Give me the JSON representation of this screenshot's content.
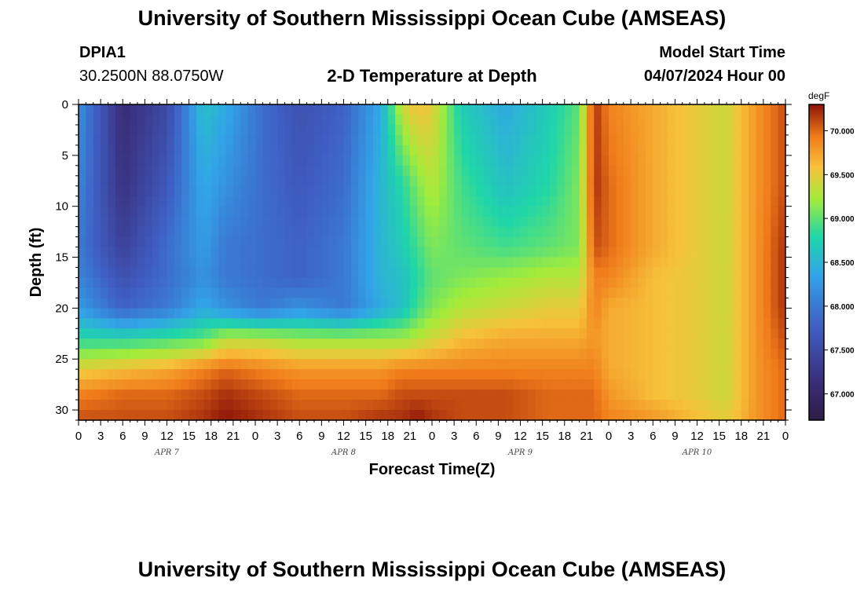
{
  "header": {
    "title": "University of Southern Mississippi Ocean Cube (AMSEAS)",
    "station_id": "DPIA1",
    "coords": "30.2500N  88.0750W",
    "plot_title": "2-D Temperature at Depth",
    "model_start_label": "Model Start Time",
    "model_start_value": "04/07/2024 Hour 00"
  },
  "footer": {
    "title": "University of Southern Mississippi Ocean Cube (AMSEAS)"
  },
  "chart_data": {
    "type": "heatmap",
    "title": "2-D Temperature at Depth",
    "xlabel": "Forecast Time(Z)",
    "ylabel": "Depth (ft)",
    "x_tick_labels": [
      "0",
      "3",
      "6",
      "9",
      "12",
      "15",
      "18",
      "21",
      "0",
      "3",
      "6",
      "9",
      "12",
      "15",
      "18",
      "21",
      "0",
      "3",
      "6",
      "9",
      "12",
      "15",
      "18",
      "21",
      "0",
      "3",
      "6",
      "9",
      "12",
      "15",
      "18",
      "21",
      "0"
    ],
    "day_labels": [
      "APR 7",
      "APR 8",
      "APR 9",
      "APR 10"
    ],
    "y_ticks": [
      0,
      5,
      10,
      15,
      20,
      25,
      30
    ],
    "ylim": [
      0,
      31
    ],
    "xlim_hours": [
      0,
      96
    ],
    "colorbar": {
      "unit": "degF",
      "min": 66.7,
      "max": 70.3,
      "ticks": [
        "67.000",
        "67.500",
        "68.000",
        "68.500",
        "69.000",
        "69.500",
        "70.000"
      ]
    },
    "value_profiles": {
      "depths_ft": [
        0,
        8,
        14,
        17,
        20,
        23,
        26,
        28.5,
        31
      ],
      "hours": [
        0,
        6,
        12,
        17,
        20,
        25,
        30,
        36,
        41,
        44,
        46,
        48,
        52,
        58,
        64,
        68,
        70,
        72,
        78,
        84,
        88,
        92,
        96
      ],
      "temps_degF": [
        [
          68.2,
          68.1,
          68.0,
          68.1,
          68.3,
          68.8,
          69.5,
          69.9,
          70.1
        ],
        [
          67.1,
          67.2,
          67.4,
          67.6,
          67.8,
          68.8,
          69.6,
          70.0,
          70.1
        ],
        [
          67.5,
          67.7,
          67.9,
          67.9,
          68.0,
          68.9,
          69.7,
          70.0,
          70.1
        ],
        [
          68.6,
          68.4,
          68.3,
          68.2,
          68.4,
          69.0,
          69.9,
          70.1,
          70.2
        ],
        [
          68.4,
          68.2,
          68.0,
          68.0,
          68.2,
          69.3,
          70.0,
          70.2,
          70.3
        ],
        [
          67.9,
          67.9,
          67.9,
          67.9,
          68.0,
          69.3,
          69.9,
          70.1,
          70.2
        ],
        [
          67.6,
          67.7,
          67.8,
          67.8,
          68.2,
          69.2,
          69.8,
          70.0,
          70.1
        ],
        [
          67.8,
          67.9,
          68.0,
          68.0,
          68.0,
          69.2,
          69.8,
          70.0,
          70.1
        ],
        [
          68.4,
          68.5,
          68.5,
          68.5,
          68.4,
          69.2,
          69.8,
          70.0,
          70.2
        ],
        [
          69.4,
          68.8,
          68.7,
          68.6,
          68.6,
          69.2,
          69.9,
          70.1,
          70.2
        ],
        [
          69.6,
          69.1,
          68.9,
          68.8,
          68.9,
          69.3,
          69.9,
          70.1,
          70.3
        ],
        [
          69.5,
          69.3,
          69.1,
          69.0,
          69.1,
          69.4,
          69.9,
          70.1,
          70.2
        ],
        [
          68.7,
          68.9,
          69.0,
          69.1,
          69.3,
          69.6,
          69.9,
          70.1,
          70.1
        ],
        [
          68.4,
          68.6,
          68.9,
          69.2,
          69.4,
          69.7,
          69.9,
          70.1,
          70.1
        ],
        [
          68.7,
          68.8,
          69.0,
          69.3,
          69.5,
          69.7,
          69.9,
          70.0,
          70.0
        ],
        [
          69.0,
          69.1,
          69.1,
          69.3,
          69.5,
          69.7,
          69.9,
          70.0,
          70.0
        ],
        [
          70.2,
          70.2,
          70.1,
          69.9,
          69.9,
          69.8,
          69.9,
          70.0,
          70.0
        ],
        [
          69.9,
          70.0,
          70.0,
          69.9,
          69.7,
          69.7,
          69.7,
          69.8,
          69.9
        ],
        [
          69.7,
          69.7,
          69.7,
          69.6,
          69.6,
          69.6,
          69.6,
          69.6,
          69.8
        ],
        [
          69.5,
          69.5,
          69.5,
          69.5,
          69.5,
          69.5,
          69.5,
          69.5,
          69.6
        ],
        [
          69.4,
          69.4,
          69.4,
          69.4,
          69.4,
          69.4,
          69.4,
          69.4,
          69.5
        ],
        [
          69.8,
          69.8,
          69.8,
          69.8,
          69.8,
          69.8,
          69.8,
          69.8,
          69.8
        ],
        [
          70.1,
          70.1,
          70.2,
          70.2,
          70.2,
          70.1,
          70.0,
          70.0,
          70.0
        ]
      ]
    }
  }
}
